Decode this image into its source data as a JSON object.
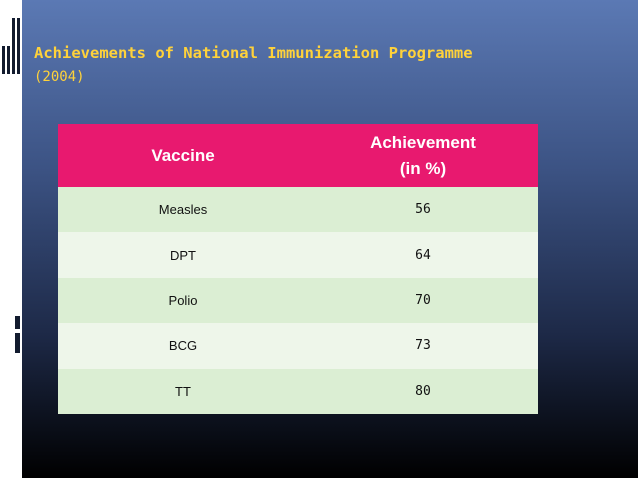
{
  "slide": {
    "title": "Achievements of National Immunization Programme",
    "subtitle": "(2004)"
  },
  "table": {
    "headers": {
      "vaccine": "Vaccine",
      "achievement_line1": "Achievement",
      "achievement_line2": "(in %)"
    },
    "rows": [
      {
        "vaccine": "Measles",
        "achievement": "56"
      },
      {
        "vaccine": "DPT",
        "achievement": "64"
      },
      {
        "vaccine": "Polio",
        "achievement": "70"
      },
      {
        "vaccine": "BCG",
        "achievement": "73"
      },
      {
        "vaccine": "TT",
        "achievement": "80"
      }
    ]
  },
  "colors": {
    "header_bg": "#e8196f",
    "row_odd_bg": "#dbeed3",
    "row_even_bg": "#eef6ea",
    "title_color": "#ffd23a",
    "background_top": "#5b79b4",
    "background_bottom": "#000000"
  }
}
